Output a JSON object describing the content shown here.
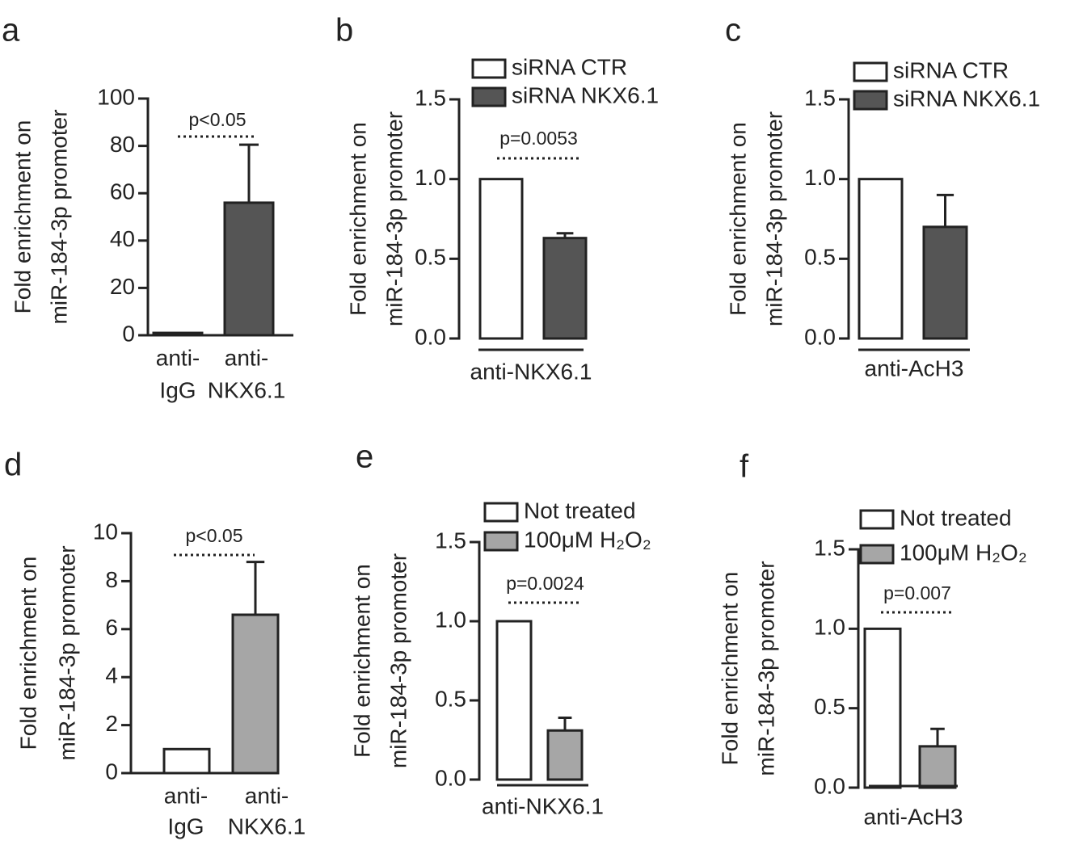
{
  "chart_data": [
    {
      "type": "bar",
      "panel": "a",
      "ylabel": [
        "Fold enrichment on",
        "miR-184-3p promoter"
      ],
      "categories": [
        [
          "anti-",
          "IgG"
        ],
        [
          "anti-",
          "NKX6.1"
        ]
      ],
      "values": [
        1,
        56
      ],
      "errors": [
        null,
        24.5
      ],
      "colors": [
        "#ffffff",
        "#555555"
      ],
      "ylim": [
        0,
        100
      ],
      "yticks": [
        0,
        20,
        40,
        60,
        80,
        100
      ],
      "annotation": "p<0.05"
    },
    {
      "type": "grouped_bar",
      "panel": "b",
      "ylabel": [
        "Fold enrichment on",
        "miR-184-3p promoter"
      ],
      "categories": [
        "anti-NKX6.1"
      ],
      "series": [
        {
          "name": "siRNA CTR",
          "color": "#ffffff",
          "values": [
            1.0
          ],
          "errors": [
            null
          ]
        },
        {
          "name": "siRNA NKX6.1",
          "color": "#555555",
          "values": [
            0.63
          ],
          "errors": [
            0.03
          ]
        }
      ],
      "ylim": [
        0,
        1.5
      ],
      "yticks": [
        {
          "value": 0,
          "label": "0.0"
        },
        0.5,
        {
          "value": 1,
          "label": "1.0"
        },
        1.5
      ],
      "annotation": "p=0.0053"
    },
    {
      "type": "grouped_bar",
      "panel": "c",
      "ylabel": [
        "Fold enrichment on",
        "miR-184-3p promoter"
      ],
      "categories": [
        "anti-AcH3"
      ],
      "series": [
        {
          "name": "siRNA CTR",
          "color": "#ffffff",
          "values": [
            1.0
          ],
          "errors": [
            null
          ]
        },
        {
          "name": "siRNA NKX6.1",
          "color": "#555555",
          "values": [
            0.7
          ],
          "errors": [
            0.2
          ]
        }
      ],
      "ylim": [
        0,
        1.5
      ],
      "yticks": [
        {
          "value": 0,
          "label": "0.0"
        },
        0.5,
        {
          "value": 1,
          "label": "1.0"
        },
        1.5
      ]
    },
    {
      "type": "bar",
      "panel": "d",
      "ylabel": [
        "Fold enrichment on",
        "miR-184-3p promoter"
      ],
      "categories": [
        [
          "anti-",
          "IgG"
        ],
        [
          "anti-",
          "NKX6.1"
        ]
      ],
      "values": [
        1,
        6.6
      ],
      "errors": [
        null,
        2.2
      ],
      "colors": [
        "#ffffff",
        "#a6a6a6"
      ],
      "ylim": [
        0,
        10
      ],
      "yticks": [
        0,
        2,
        4,
        6,
        8,
        10
      ],
      "annotation": "p<0.05"
    },
    {
      "type": "grouped_bar",
      "panel": "e",
      "ylabel": [
        "Fold enrichment on",
        "miR-184-3p promoter"
      ],
      "categories": [
        "anti-NKX6.1"
      ],
      "series": [
        {
          "name": "Not treated",
          "color": "#ffffff",
          "values": [
            1.0
          ],
          "errors": [
            null
          ]
        },
        {
          "name": "100μM H₂O₂",
          "color": "#a6a6a6",
          "values": [
            0.31
          ],
          "errors": [
            0.08
          ]
        }
      ],
      "ylim": [
        0,
        1.5
      ],
      "yticks": [
        {
          "value": 0,
          "label": "0.0"
        },
        0.5,
        {
          "value": 1,
          "label": "1.0"
        },
        1.5
      ],
      "annotation": "p=0.0024"
    },
    {
      "type": "grouped_bar",
      "panel": "f",
      "ylabel": [
        "Fold enrichment on",
        "miR-184-3p promoter"
      ],
      "categories": [
        "anti-AcH3"
      ],
      "series": [
        {
          "name": "Not treated",
          "color": "#ffffff",
          "values": [
            1.0
          ],
          "errors": [
            null
          ]
        },
        {
          "name": "100μM H₂O₂",
          "color": "#a6a6a6",
          "values": [
            0.26
          ],
          "errors": [
            0.11
          ]
        }
      ],
      "ylim": [
        0,
        1.5
      ],
      "yticks": [
        {
          "value": 0,
          "label": "0.0"
        },
        0.5,
        {
          "value": 1,
          "label": "1.0"
        },
        1.5
      ],
      "annotation": "p=0.007"
    }
  ]
}
